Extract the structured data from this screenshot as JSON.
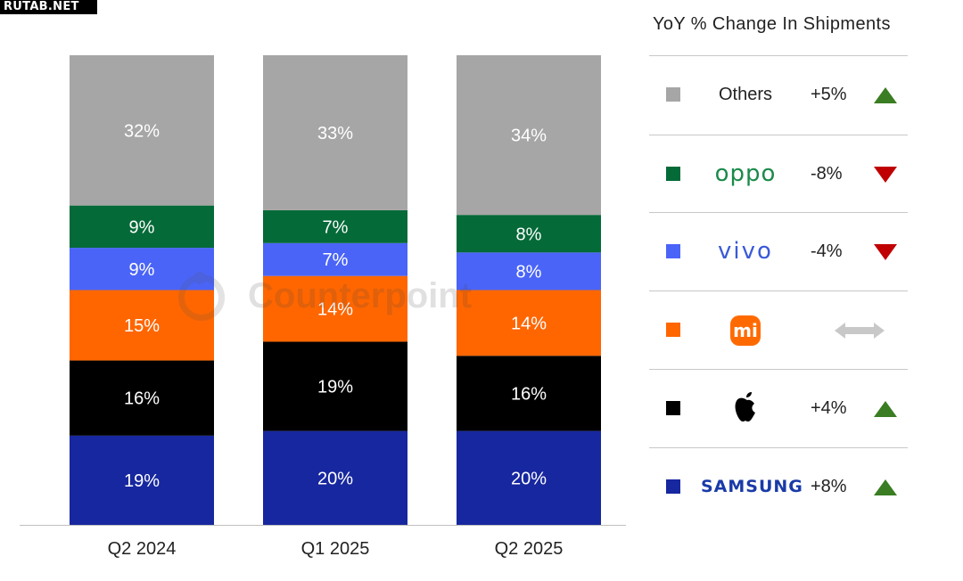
{
  "source_tag": "RUTAB.NET",
  "watermark": "Counterpoint",
  "legend": {
    "title": "YoY % Change In Shipments",
    "rows": [
      {
        "brand": "Others",
        "change": "+5%",
        "trend": "up",
        "color": "#a6a6a6",
        "icon": "others-label"
      },
      {
        "brand": "oppo",
        "change": "-8%",
        "trend": "down",
        "color": "#046a38",
        "icon": "oppo-logo"
      },
      {
        "brand": "vivo",
        "change": "-4%",
        "trend": "down",
        "color": "#4a64f8",
        "icon": "vivo-logo"
      },
      {
        "brand": "mi",
        "change": "",
        "trend": "flat",
        "color": "#ff6600",
        "icon": "xiaomi-logo"
      },
      {
        "brand": "",
        "change": "+4%",
        "trend": "up",
        "color": "#000000",
        "icon": "apple-logo"
      },
      {
        "brand": "SAMSUNG",
        "change": "+8%",
        "trend": "up",
        "color": "#17279f",
        "icon": "samsung-logo"
      }
    ],
    "trend_colors": {
      "up": "#3a7d22",
      "down": "#c00000",
      "flat": "#c8c8c8"
    }
  },
  "chart_data": {
    "type": "bar",
    "stacked": true,
    "categories": [
      "Q2 2024",
      "Q1 2025",
      "Q2 2025"
    ],
    "ylim": [
      0,
      100
    ],
    "series": [
      {
        "name": "Samsung",
        "values": [
          19,
          20,
          20
        ],
        "labels": [
          "19%",
          "20%",
          "20%"
        ],
        "color": "#17279f"
      },
      {
        "name": "Apple",
        "values": [
          16,
          19,
          16
        ],
        "labels": [
          "16%",
          "19%",
          "16%"
        ],
        "color": "#000000"
      },
      {
        "name": "Xiaomi",
        "values": [
          15,
          14,
          14
        ],
        "labels": [
          "15%",
          "14%",
          "14%"
        ],
        "color": "#ff6600"
      },
      {
        "name": "vivo",
        "values": [
          9,
          7,
          8
        ],
        "labels": [
          "9%",
          "7%",
          "8%"
        ],
        "color": "#4a64f8"
      },
      {
        "name": "OPPO",
        "values": [
          9,
          7,
          8
        ],
        "labels": [
          "9%",
          "7%",
          "8%"
        ],
        "color": "#046a38"
      },
      {
        "name": "Others",
        "values": [
          32,
          33,
          34
        ],
        "labels": [
          "32%",
          "33%",
          "34%"
        ],
        "color": "#a6a6a6"
      }
    ],
    "grid": false
  }
}
